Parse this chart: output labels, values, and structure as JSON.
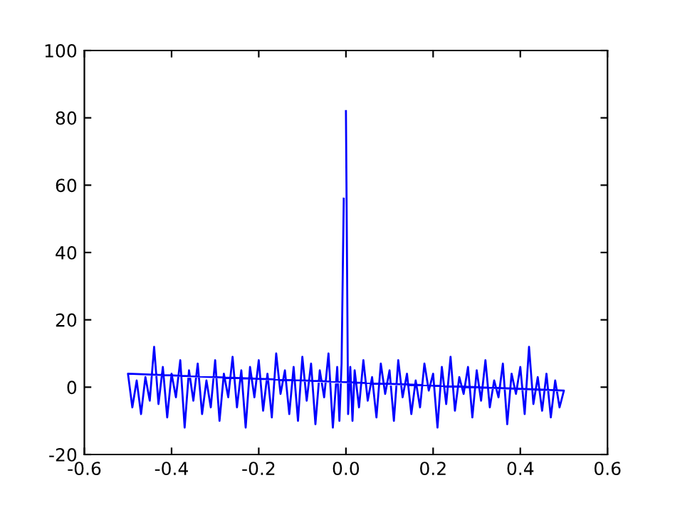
{
  "chart_data": {
    "type": "line",
    "xlim": [
      -0.6,
      0.6
    ],
    "ylim": [
      -20,
      100
    ],
    "xticks": [
      -0.6,
      -0.4,
      -0.2,
      {
        "value": 0,
        "label": "0.0"
      },
      0.2,
      0.4,
      0.6
    ],
    "yticks": [
      -20,
      0,
      20,
      40,
      60,
      80,
      100
    ],
    "grid": false,
    "line_style": "solid",
    "marker": "none",
    "series": [
      {
        "color": "#0000ff",
        "x": [
          0.0,
          0.005,
          0.01,
          0.015,
          0.02,
          0.03,
          0.04,
          0.05,
          0.06,
          0.07,
          0.08,
          0.09,
          0.1,
          0.11,
          0.12,
          0.13,
          0.14,
          0.15,
          0.16,
          0.17,
          0.18,
          0.19,
          0.2,
          0.21,
          0.22,
          0.23,
          0.24,
          0.25,
          0.26,
          0.27,
          0.28,
          0.29,
          0.3,
          0.31,
          0.32,
          0.33,
          0.34,
          0.35,
          0.36,
          0.37,
          0.38,
          0.39,
          0.4,
          0.41,
          0.42,
          0.43,
          0.44,
          0.45,
          0.46,
          0.47,
          0.48,
          0.49,
          0.5,
          -0.5,
          -0.49,
          -0.48,
          -0.47,
          -0.46,
          -0.45,
          -0.44,
          -0.43,
          -0.42,
          -0.41,
          -0.4,
          -0.39,
          -0.38,
          -0.37,
          -0.36,
          -0.35,
          -0.34,
          -0.33,
          -0.32,
          -0.31,
          -0.3,
          -0.29,
          -0.28,
          -0.27,
          -0.26,
          -0.25,
          -0.24,
          -0.23,
          -0.22,
          -0.21,
          -0.2,
          -0.19,
          -0.18,
          -0.17,
          -0.16,
          -0.15,
          -0.14,
          -0.13,
          -0.12,
          -0.11,
          -0.1,
          -0.09,
          -0.08,
          -0.07,
          -0.06,
          -0.05,
          -0.04,
          -0.03,
          -0.02,
          -0.015,
          -0.01,
          -0.005
        ],
        "values": [
          82,
          -8,
          6,
          -10,
          5,
          -6,
          8,
          -4,
          3,
          -9,
          7,
          -2,
          5,
          -10,
          8,
          -3,
          4,
          -8,
          2,
          -6,
          7,
          -1,
          4,
          -12,
          6,
          -5,
          9,
          -7,
          3,
          -2,
          6,
          -9,
          5,
          -4,
          8,
          -6,
          2,
          -3,
          7,
          -11,
          4,
          -2,
          6,
          -8,
          12,
          -5,
          3,
          -7,
          4,
          -9,
          2,
          -6,
          -1,
          4,
          -6,
          2,
          -8,
          3,
          -4,
          12,
          -5,
          6,
          -9,
          4,
          -3,
          8,
          -12,
          5,
          -4,
          7,
          -8,
          2,
          -6,
          8,
          -10,
          4,
          -3,
          9,
          -6,
          5,
          -12,
          6,
          -3,
          8,
          -7,
          4,
          -9,
          10,
          -2,
          5,
          -8,
          6,
          -10,
          9,
          -4,
          7,
          -11,
          5,
          -3,
          10,
          -12,
          6,
          -10,
          7,
          56
        ]
      }
    ]
  }
}
